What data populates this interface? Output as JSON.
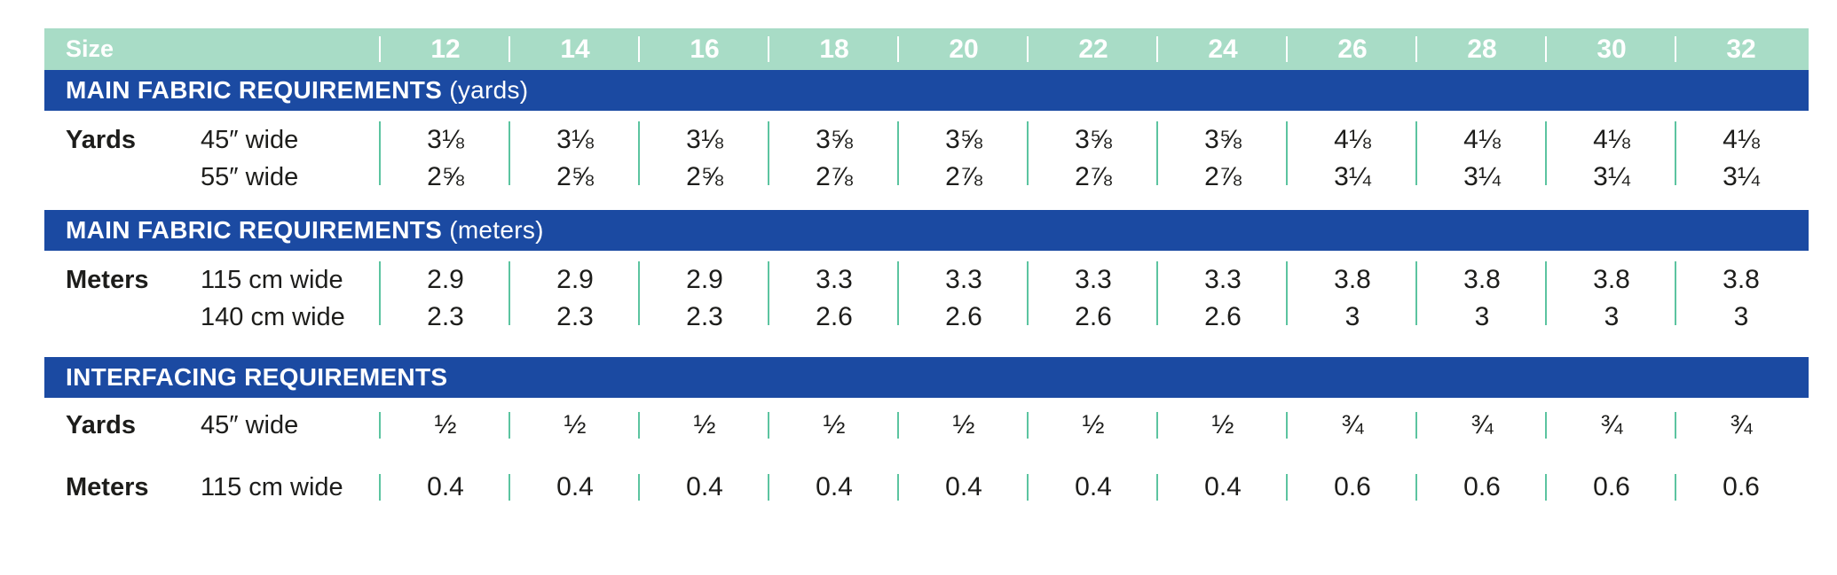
{
  "header": {
    "size_label": "Size",
    "sizes": [
      "12",
      "14",
      "16",
      "18",
      "20",
      "22",
      "24",
      "26",
      "28",
      "30",
      "32"
    ]
  },
  "sections": [
    {
      "title_bold": "MAIN FABRIC REQUIREMENTS",
      "title_light": " (yards)",
      "rows": [
        {
          "label": "Yards",
          "sub": "45″ wide",
          "values": [
            "3⅛",
            "3⅛",
            "3⅛",
            "3⅝",
            "3⅝",
            "3⅝",
            "3⅝",
            "4⅛",
            "4⅛",
            "4⅛",
            "4⅛"
          ]
        },
        {
          "label": "",
          "sub": "55″ wide",
          "values": [
            "2⅝",
            "2⅝",
            "2⅝",
            "2⅞",
            "2⅞",
            "2⅞",
            "2⅞",
            "3¼",
            "3¼",
            "3¼",
            "3¼"
          ]
        }
      ]
    },
    {
      "title_bold": "MAIN FABRIC REQUIREMENTS",
      "title_light": " (meters)",
      "rows": [
        {
          "label": "Meters",
          "sub": "115 cm wide",
          "values": [
            "2.9",
            "2.9",
            "2.9",
            "3.3",
            "3.3",
            "3.3",
            "3.3",
            "3.8",
            "3.8",
            "3.8",
            "3.8"
          ]
        },
        {
          "label": "",
          "sub": "140 cm wide",
          "values": [
            "2.3",
            "2.3",
            "2.3",
            "2.6",
            "2.6",
            "2.6",
            "2.6",
            "3",
            "3",
            "3",
            "3"
          ]
        }
      ]
    },
    {
      "title_bold": "INTERFACING REQUIREMENTS",
      "title_light": "",
      "rows": [
        {
          "label": "Yards",
          "sub": "45″ wide",
          "values": [
            "½",
            "½",
            "½",
            "½",
            "½",
            "½",
            "½",
            "¾",
            "¾",
            "¾",
            "¾"
          ]
        },
        {
          "label": "Meters",
          "sub": "115 cm wide",
          "values": [
            "0.4",
            "0.4",
            "0.4",
            "0.4",
            "0.4",
            "0.4",
            "0.4",
            "0.6",
            "0.6",
            "0.6",
            "0.6"
          ]
        }
      ]
    }
  ],
  "colors": {
    "header_bg": "#a8dcc6",
    "band_bg": "#1b4aa2",
    "divider": "#5cc4a0"
  }
}
